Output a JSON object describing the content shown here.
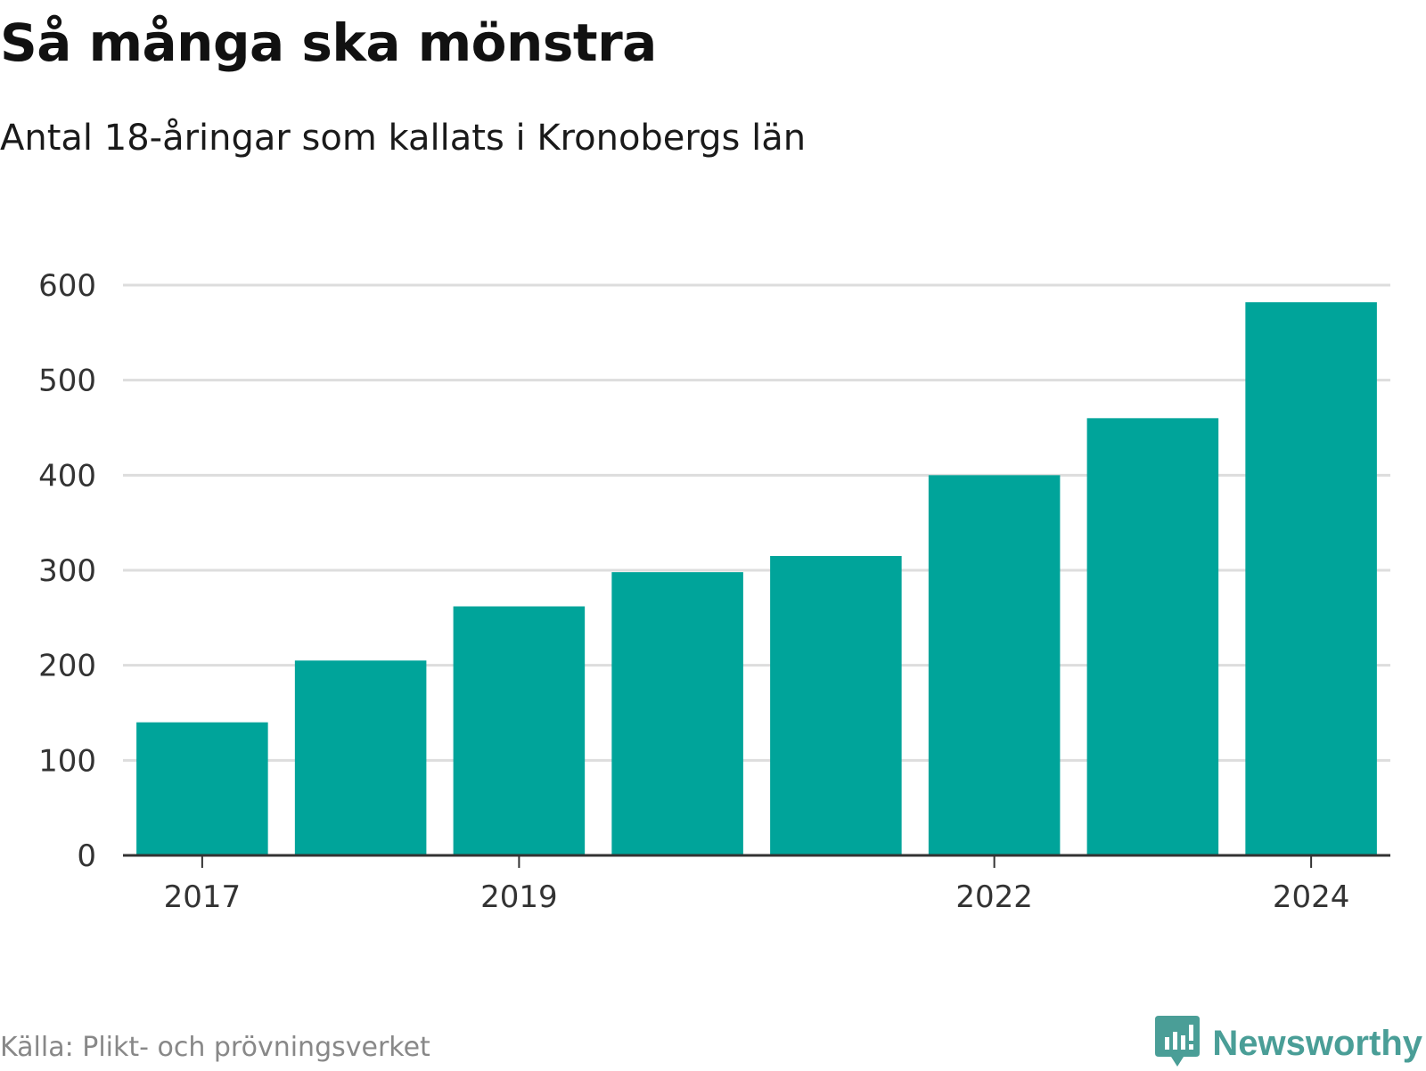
{
  "header": {
    "title": "Så många ska mönstra",
    "subtitle": "Antal 18-åringar som kallats i Kronobergs län"
  },
  "footer": {
    "source": "Källa: Plikt- och prövningsverket",
    "brand": "Newsworthy",
    "brand_icon": "bar-chart-speech-bubble-icon"
  },
  "colors": {
    "bar": "#00a49a",
    "brand": "#4a9e97",
    "grid": "#dddddd",
    "axis": "#333333"
  },
  "chart_data": {
    "type": "bar",
    "title": "Så många ska mönstra",
    "subtitle": "Antal 18-åringar som kallats i Kronobergs län",
    "xlabel": "",
    "ylabel": "",
    "categories": [
      "2017",
      "2018",
      "2019",
      "2020",
      "2021",
      "2022",
      "2023",
      "2024"
    ],
    "values": [
      140,
      205,
      262,
      298,
      315,
      400,
      460,
      582
    ],
    "x_tick_labels": [
      "2017",
      "2019",
      "2022",
      "2024"
    ],
    "y_ticks": [
      0,
      100,
      200,
      300,
      400,
      500,
      600
    ],
    "ylim": [
      0,
      600
    ],
    "grid": true,
    "legend": "none"
  }
}
